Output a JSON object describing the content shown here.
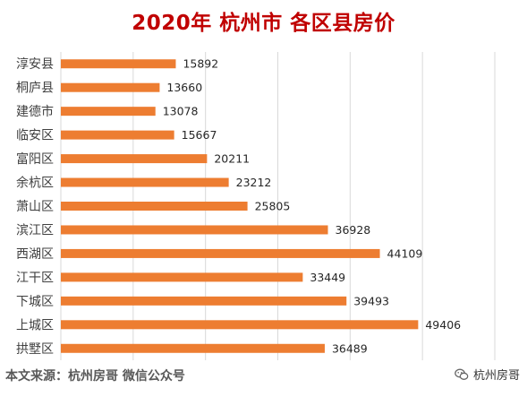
{
  "title": "2020年 杭州市 各区县房价",
  "source": "本文来源：杭州房哥 微信公众号",
  "watermark": "杭州房哥",
  "colors": {
    "bar": "#ed7d31",
    "title": "#c00000",
    "grid": "#d9d9d9"
  },
  "chart_data": {
    "type": "bar",
    "orientation": "horizontal",
    "title": "2020年 杭州市 各区县房价",
    "categories": [
      "淳安县",
      "桐庐县",
      "建德市",
      "临安区",
      "富阳区",
      "余杭区",
      "萧山区",
      "滨江区",
      "西湖区",
      "江干区",
      "下城区",
      "上城区",
      "拱墅区"
    ],
    "values": [
      15892,
      13660,
      13078,
      15667,
      20211,
      23212,
      25805,
      36928,
      44109,
      33449,
      39493,
      49406,
      36489
    ],
    "xlim": [
      0,
      60000
    ],
    "grid": true,
    "data_labels": true,
    "legend": "none"
  }
}
